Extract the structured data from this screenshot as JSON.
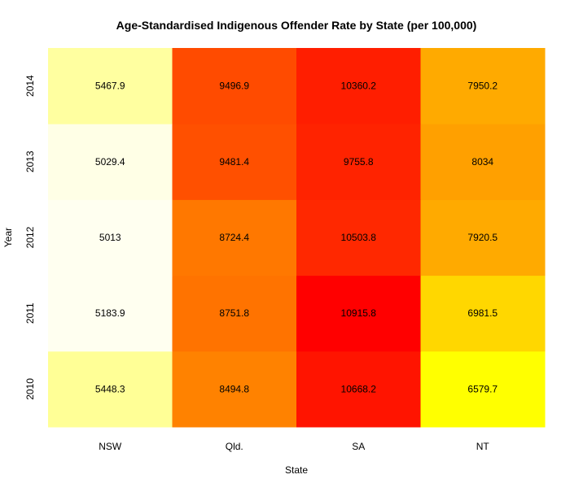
{
  "chart_data": {
    "type": "heatmap",
    "title": "Age-Standardised Indigenous Offender Rate by State (per 100,000)",
    "xlabel": "State",
    "ylabel": "Year",
    "x": [
      "NSW",
      "Qld.",
      "SA",
      "NT"
    ],
    "y": [
      "2010",
      "2011",
      "2012",
      "2013",
      "2014"
    ],
    "values": [
      [
        5448.3,
        8494.8,
        10668.2,
        6579.7
      ],
      [
        5183.9,
        8751.8,
        10915.8,
        6981.5
      ],
      [
        5013,
        8724.4,
        10503.8,
        7920.5
      ],
      [
        5029.4,
        9481.4,
        9755.8,
        8034
      ],
      [
        5467.9,
        9496.9,
        10360.2,
        7950.2
      ]
    ],
    "value_labels": [
      [
        "5448.3",
        "8494.8",
        "10668.2",
        "6579.7"
      ],
      [
        "5183.9",
        "8751.8",
        "10915.8",
        "6981.5"
      ],
      [
        "5013",
        "8724.4",
        "10503.8",
        "7920.5"
      ],
      [
        "5029.4",
        "9481.4",
        "9755.8",
        "8034"
      ],
      [
        "5467.9",
        "9496.9",
        "10360.2",
        "7950.2"
      ]
    ],
    "color_scale": "heat",
    "colors": {
      "NSW": [
        "#ffff96",
        "#fffff0",
        "#fffff0",
        "#ffffe6",
        "#ffffa0"
      ],
      "Qld.": [
        "#ff8200",
        "#ff7300",
        "#ff7800",
        "#ff5000",
        "#ff4b00"
      ],
      "SA": [
        "#ff1400",
        "#ff0000",
        "#ff2800",
        "#ff2300",
        "#ff1e00"
      ],
      "NT": [
        "#ffff00",
        "#ffd700",
        "#ffaa00",
        "#ffa000",
        "#ffaa00"
      ]
    },
    "grid": false,
    "legend": "none"
  }
}
